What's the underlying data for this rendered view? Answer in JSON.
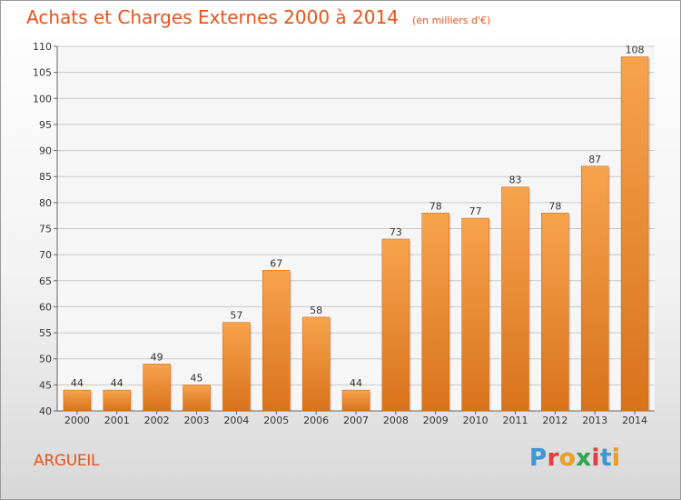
{
  "header": {
    "title": "Achats et Charges Externes 2000 à 2014",
    "unit": "(en milliers d'€)"
  },
  "footer": {
    "place": "ARGUEIL",
    "logo_text": "Proxiti",
    "logo_colors": [
      "#3a9ad9",
      "#e83e3e",
      "#f0a020",
      "#2fa84f",
      "#e83e3e",
      "#3a9ad9",
      "#f0a020"
    ]
  },
  "chart_data": {
    "type": "bar",
    "title": "Achats et Charges Externes 2000 à 2014",
    "categories": [
      "2000",
      "2001",
      "2002",
      "2003",
      "2004",
      "2005",
      "2006",
      "2007",
      "2008",
      "2009",
      "2010",
      "2011",
      "2012",
      "2013",
      "2014"
    ],
    "values": [
      44,
      44,
      49,
      45,
      57,
      67,
      58,
      44,
      73,
      78,
      77,
      83,
      78,
      87,
      108
    ],
    "ylim": [
      40,
      110
    ],
    "yticks": [
      40,
      45,
      50,
      55,
      60,
      65,
      70,
      75,
      80,
      85,
      90,
      95,
      100,
      105,
      110
    ],
    "grid": true,
    "bar_color_light": "#f7a34e",
    "bar_color_dark": "#d8731b"
  }
}
